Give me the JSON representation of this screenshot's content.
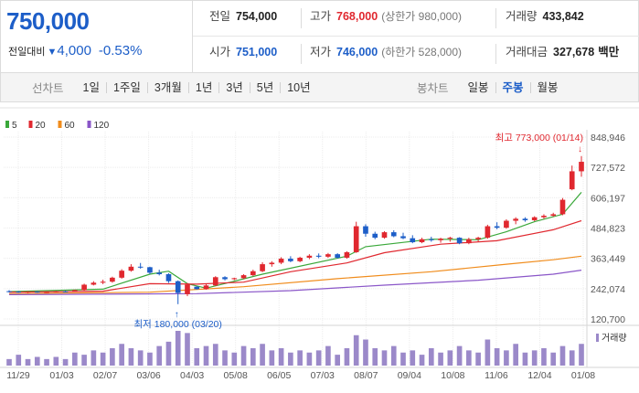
{
  "quote": {
    "price": "750,000",
    "change_label": "전일대비",
    "change_direction_glyph": "▼",
    "change_value": "4,000",
    "change_percent": "-0.53%"
  },
  "stats": {
    "prev_close": {
      "label": "전일",
      "value": "754,000"
    },
    "high": {
      "label": "고가",
      "value": "768,000",
      "sub": "(상한가 980,000)"
    },
    "volume": {
      "label": "거래량",
      "value": "433,842"
    },
    "open": {
      "label": "시가",
      "value": "751,000"
    },
    "low": {
      "label": "저가",
      "value": "746,000",
      "sub": "(하한가 528,000)"
    },
    "trade_amount": {
      "label": "거래대금",
      "value": "327,678",
      "unit": "백만"
    }
  },
  "tabs": {
    "line_label": "선차트",
    "line_items": [
      "1일",
      "1주일",
      "3개월",
      "1년",
      "3년",
      "5년",
      "10년"
    ],
    "candle_label": "봉차트",
    "candle_items": [
      "일봉",
      "주봉",
      "월봉"
    ],
    "candle_active_index": 1
  },
  "chart_data": {
    "type": "candlestick",
    "legend": [
      {
        "name": "5",
        "color": "#3aa83a"
      },
      {
        "name": "20",
        "color": "#e0282f"
      },
      {
        "name": "60",
        "color": "#f08c1c"
      },
      {
        "name": "120",
        "color": "#8a56c8"
      }
    ],
    "y_ticks": [
      "848,946",
      "727,572",
      "606,197",
      "484,823",
      "363,449",
      "242,074",
      "120,700"
    ],
    "ylim": [
      120700,
      848946
    ],
    "x_ticks": [
      "11/29",
      "01/03",
      "02/07",
      "03/06",
      "04/03",
      "05/08",
      "06/05",
      "07/03",
      "08/07",
      "09/04",
      "10/08",
      "11/06",
      "12/04",
      "01/08"
    ],
    "annotations": {
      "high": "최고 773,000 (01/14)",
      "low": "최저 180,000 (03/20)"
    },
    "volume_label": "거래량",
    "up_color": "#e0282f",
    "down_color": "#1d5ec8",
    "candles_ohlc": [
      [
        232000,
        236000,
        227000,
        230000
      ],
      [
        230000,
        233000,
        226000,
        228000
      ],
      [
        228000,
        232000,
        225000,
        230000
      ],
      [
        230000,
        232000,
        226000,
        228000
      ],
      [
        228000,
        231000,
        225000,
        229000
      ],
      [
        229000,
        233000,
        227000,
        231000
      ],
      [
        231000,
        234000,
        228000,
        230000
      ],
      [
        230000,
        238000,
        229000,
        236000
      ],
      [
        236000,
        262000,
        234000,
        258000
      ],
      [
        258000,
        272000,
        255000,
        266000
      ],
      [
        266000,
        278000,
        260000,
        270000
      ],
      [
        270000,
        290000,
        266000,
        286000
      ],
      [
        286000,
        320000,
        282000,
        314000
      ],
      [
        314000,
        340000,
        310000,
        330000
      ],
      [
        330000,
        345000,
        322000,
        328000
      ],
      [
        328000,
        330000,
        300000,
        306000
      ],
      [
        306000,
        318000,
        295000,
        300000
      ],
      [
        300000,
        304000,
        265000,
        272000
      ],
      [
        272000,
        275000,
        180000,
        225000
      ],
      [
        220000,
        265000,
        212000,
        258000
      ],
      [
        250000,
        252000,
        238000,
        240000
      ],
      [
        240000,
        262000,
        238000,
        255000
      ],
      [
        255000,
        292000,
        253000,
        288000
      ],
      [
        288000,
        292000,
        275000,
        280000
      ],
      [
        280000,
        286000,
        276000,
        284000
      ],
      [
        284000,
        300000,
        280000,
        296000
      ],
      [
        296000,
        318000,
        292000,
        312000
      ],
      [
        312000,
        348000,
        308000,
        340000
      ],
      [
        340000,
        352000,
        330000,
        346000
      ],
      [
        346000,
        368000,
        340000,
        362000
      ],
      [
        362000,
        372000,
        348000,
        352000
      ],
      [
        352000,
        370000,
        348000,
        366000
      ],
      [
        366000,
        380000,
        360000,
        374000
      ],
      [
        374000,
        383000,
        364000,
        370000
      ],
      [
        370000,
        385000,
        365000,
        380000
      ],
      [
        380000,
        384000,
        362000,
        366000
      ],
      [
        366000,
        392000,
        362000,
        388000
      ],
      [
        388000,
        510000,
        385000,
        492000
      ],
      [
        492000,
        500000,
        450000,
        462000
      ],
      [
        462000,
        470000,
        440000,
        446000
      ],
      [
        446000,
        472000,
        442000,
        468000
      ],
      [
        468000,
        476000,
        448000,
        452000
      ],
      [
        452000,
        466000,
        440000,
        444000
      ],
      [
        444000,
        456000,
        424000,
        428000
      ],
      [
        428000,
        446000,
        424000,
        440000
      ],
      [
        440000,
        450000,
        430000,
        436000
      ],
      [
        436000,
        446000,
        426000,
        442000
      ],
      [
        442000,
        450000,
        430000,
        446000
      ],
      [
        446000,
        448000,
        420000,
        424000
      ],
      [
        424000,
        446000,
        420000,
        440000
      ],
      [
        440000,
        450000,
        430000,
        446000
      ],
      [
        446000,
        498000,
        442000,
        492000
      ],
      [
        492000,
        508000,
        480000,
        486000
      ],
      [
        486000,
        520000,
        482000,
        514000
      ],
      [
        514000,
        528000,
        500000,
        522000
      ],
      [
        522000,
        528000,
        510000,
        516000
      ],
      [
        516000,
        532000,
        512000,
        528000
      ],
      [
        528000,
        540000,
        522000,
        534000
      ],
      [
        534000,
        546000,
        530000,
        540000
      ],
      [
        540000,
        605000,
        536000,
        598000
      ],
      [
        640000,
        735000,
        636000,
        712000
      ],
      [
        712000,
        773000,
        690000,
        750000
      ]
    ],
    "ma_series": {
      "5": [
        [
          0,
          230000
        ],
        [
          10,
          240000
        ],
        [
          15,
          300000
        ],
        [
          17,
          312000
        ],
        [
          19,
          262000
        ],
        [
          21,
          244000
        ],
        [
          27,
          300000
        ],
        [
          36,
          372000
        ],
        [
          38,
          410000
        ],
        [
          45,
          440000
        ],
        [
          50,
          438000
        ],
        [
          53,
          470000
        ],
        [
          56,
          510000
        ],
        [
          59,
          540000
        ],
        [
          61,
          628000
        ]
      ],
      "20": [
        [
          0,
          228000
        ],
        [
          10,
          232000
        ],
        [
          15,
          262000
        ],
        [
          20,
          260000
        ],
        [
          25,
          268000
        ],
        [
          30,
          310000
        ],
        [
          36,
          345000
        ],
        [
          40,
          386000
        ],
        [
          46,
          420000
        ],
        [
          52,
          434000
        ],
        [
          58,
          478000
        ],
        [
          61,
          514000
        ]
      ],
      "60": [
        [
          0,
          222000
        ],
        [
          15,
          228000
        ],
        [
          25,
          250000
        ],
        [
          35,
          282000
        ],
        [
          45,
          310000
        ],
        [
          53,
          340000
        ],
        [
          58,
          358000
        ],
        [
          61,
          372000
        ]
      ],
      "120": [
        [
          0,
          218000
        ],
        [
          20,
          222000
        ],
        [
          30,
          234000
        ],
        [
          40,
          256000
        ],
        [
          50,
          276000
        ],
        [
          58,
          300000
        ],
        [
          61,
          316000
        ]
      ]
    },
    "volume_bars": [
      3,
      5,
      3,
      4,
      3,
      4,
      3,
      6,
      5,
      7,
      6,
      8,
      10,
      8,
      7,
      6,
      9,
      11,
      16,
      15,
      8,
      9,
      10,
      7,
      6,
      9,
      8,
      10,
      7,
      8,
      6,
      7,
      6,
      7,
      9,
      5,
      8,
      14,
      12,
      8,
      7,
      9,
      6,
      7,
      5,
      8,
      6,
      7,
      9,
      7,
      6,
      12,
      8,
      7,
      10,
      6,
      7,
      8,
      6,
      9,
      7,
      10
    ]
  }
}
